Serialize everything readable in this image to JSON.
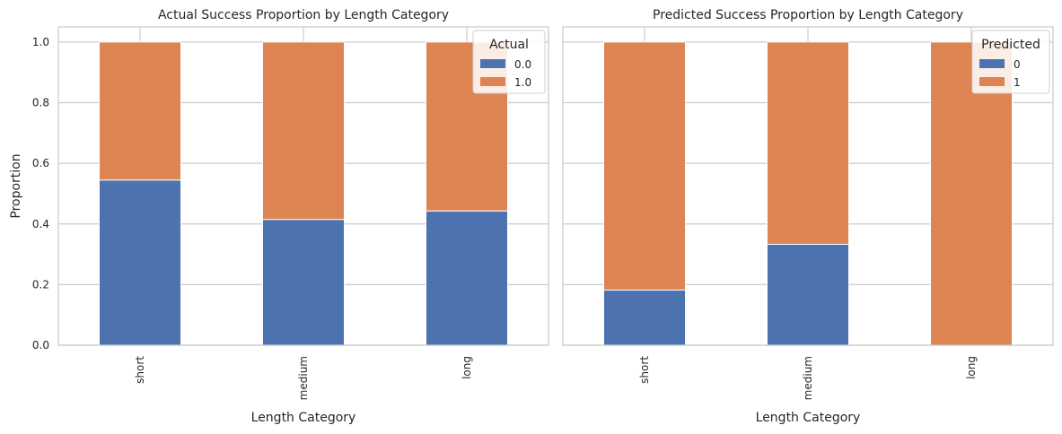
{
  "chart_data": [
    {
      "type": "bar",
      "stacked": true,
      "title": "Actual Success Proportion by Length Category",
      "xlabel": "Length Category",
      "ylabel": "Proportion",
      "categories": [
        "short",
        "medium",
        "long"
      ],
      "series": [
        {
          "name": "0.0",
          "color": "#4c72b0",
          "values": [
            0.545,
            0.415,
            0.443
          ]
        },
        {
          "name": "1.0",
          "color": "#dd8452",
          "values": [
            0.455,
            0.585,
            0.557
          ]
        }
      ],
      "ylim": [
        0,
        1.05
      ],
      "yticks": [
        "0.0",
        "0.2",
        "0.4",
        "0.6",
        "0.8",
        "1.0"
      ],
      "legend_title": "Actual",
      "legend_position": "top-right",
      "grid": true
    },
    {
      "type": "bar",
      "stacked": true,
      "title": "Predicted Success Proportion by Length Category",
      "xlabel": "Length Category",
      "ylabel": "",
      "categories": [
        "short",
        "medium",
        "long"
      ],
      "series": [
        {
          "name": "0",
          "color": "#4c72b0",
          "values": [
            0.182,
            0.333,
            0.0
          ]
        },
        {
          "name": "1",
          "color": "#dd8452",
          "values": [
            0.818,
            0.667,
            1.0
          ]
        }
      ],
      "ylim": [
        0,
        1.05
      ],
      "yticks": [
        "0.0",
        "0.2",
        "0.4",
        "0.6",
        "0.8",
        "1.0"
      ],
      "legend_title": "Predicted",
      "legend_position": "top-right",
      "grid": true
    }
  ]
}
